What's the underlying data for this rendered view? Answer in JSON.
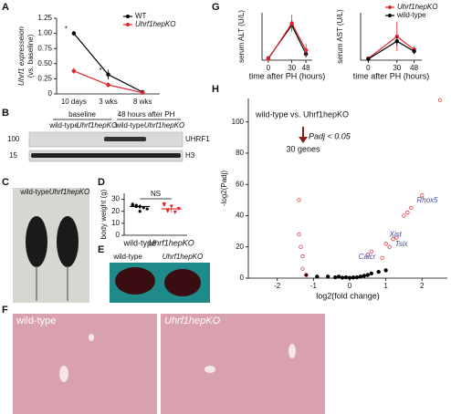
{
  "chart_data": [
    {
      "type": "line",
      "ylabel": [
        "Uhrf1 expresseion",
        "(vs. baseline)"
      ],
      "categories": [
        "10 days",
        "3 wks",
        "8 wks"
      ],
      "series": [
        {
          "name": "WT",
          "color": "#000000",
          "values": [
            1.0,
            0.32,
            0.03
          ],
          "errors": [
            0.04,
            0.08,
            0.02
          ]
        },
        {
          "name": "Uhrf1hepKO",
          "color": "#e0242b",
          "values": [
            0.38,
            0.15,
            0.02
          ],
          "errors": [
            0.05,
            0.04,
            0.01
          ]
        }
      ],
      "annotations": [
        "*",
        "*"
      ],
      "ylim": [
        0,
        1.25
      ],
      "yticks": [
        0,
        0.25,
        {
          "value": 0.5,
          "label": "0.50"
        },
        0.75,
        {
          "value": 1,
          "label": "1.00"
        },
        1.25
      ],
      "legend": "upper right"
    },
    {
      "type": "dotplot",
      "ylabel": "body weight (g)",
      "categories": [
        "wild-type",
        "Uhrf1hepKO"
      ],
      "values": [
        24,
        22
      ],
      "errors": [
        2,
        3
      ],
      "points": [
        [
          26,
          25,
          24,
          23,
          22,
          25,
          24,
          20
        ],
        [
          25,
          21,
          24,
          19,
          22,
          26,
          20
        ]
      ],
      "colors": [
        "#000000",
        "#e0242b"
      ],
      "annotation": "NS",
      "ylim": [
        0,
        35
      ],
      "yticks": [
        0,
        10,
        20,
        30
      ]
    },
    {
      "type": "line",
      "ylabel": "serum ALT (U/L)",
      "xlabel": "time after PH (hours)",
      "x": [
        0,
        30,
        48
      ],
      "xlim": [
        -8,
        56
      ],
      "xticks": [
        0,
        30,
        48
      ],
      "ylim": [
        0,
        3800
      ],
      "series": [
        {
          "color": "#000000",
          "values": [
            150,
            2800,
            500
          ],
          "errors": [
            50,
            400,
            300
          ]
        },
        {
          "color": "#e0242b",
          "values": [
            100,
            2950,
            800
          ],
          "errors": [
            50,
            700,
            500
          ]
        }
      ]
    },
    {
      "type": "line",
      "ylabel": "serum AST (U/L)",
      "xlabel": "time after PH (hours)",
      "x": [
        0,
        30,
        48
      ],
      "xlim": [
        -8,
        56
      ],
      "xticks": [
        0,
        30,
        48
      ],
      "ylim": [
        0,
        8000
      ],
      "series": [
        {
          "name": "Uhrf1hepKO",
          "color": "#e0242b",
          "values": [
            300,
            4000,
            1800
          ],
          "errors": [
            200,
            2500,
            600
          ]
        },
        {
          "name": "wild-type",
          "color": "#000000",
          "values": [
            200,
            3200,
            1500
          ],
          "errors": [
            100,
            800,
            500
          ]
        }
      ],
      "legend": "upper right"
    },
    {
      "type": "scatter",
      "title": "wild-type vs. Uhrf1hepKO",
      "annotations": [
        "Padj < 0.05",
        "30 genes"
      ],
      "xlabel": "log2(fold change)",
      "ylabel": "-log2(Padj)",
      "xlim": [
        -2.8,
        2.7
      ],
      "ylim": [
        0,
        115
      ],
      "xticks": [
        -2,
        -1,
        0,
        1,
        2
      ],
      "yticks": [
        0,
        20,
        40,
        60,
        80,
        100
      ],
      "series": [
        {
          "color": "#000000",
          "x": [
            -1.2,
            -0.9,
            -0.6,
            -0.4,
            -0.3,
            -0.2,
            -0.1,
            0,
            0.1,
            0.2,
            0.3,
            0.4,
            0.5,
            0.6,
            0.8,
            1.0
          ],
          "y": [
            2,
            1,
            1,
            0.5,
            1,
            0.3,
            0.5,
            0.2,
            0.4,
            0.5,
            1,
            1.5,
            2,
            3,
            4,
            5
          ]
        },
        {
          "color": "#e0242b",
          "x": [
            -1.4,
            -1.4,
            -1.35,
            -1.3,
            -1.3,
            -1.2,
            0.5,
            0.6,
            0.9,
            1.0,
            1.1,
            1.2,
            1.3,
            1.5,
            1.6,
            1.7,
            2.0,
            2.5
          ],
          "y": [
            50,
            28,
            20,
            14,
            6,
            2,
            15,
            17,
            13,
            22,
            20,
            25,
            26,
            40,
            42,
            45,
            53,
            114
          ]
        }
      ],
      "gene_labels": [
        {
          "text": "Rhox5",
          "x": 1.7,
          "y": 45
        },
        {
          "text": "Xist",
          "x": 1.0,
          "y": 22
        },
        {
          "text": "Tsix",
          "x": 1.1,
          "y": 20
        },
        {
          "text": "Calcr",
          "x": 0.6,
          "y": 17
        }
      ]
    }
  ],
  "figure": {
    "letters": [
      "A",
      "B",
      "C",
      "D",
      "E",
      "F",
      "G",
      "H"
    ],
    "blot": {
      "groups": [
        "baseline",
        "48 hours after PH"
      ],
      "lanes": [
        "wild-type",
        "Uhrf1hepKO",
        "wild-type",
        "Uhrf1hepKO"
      ],
      "markers": [
        "100",
        "15"
      ],
      "proteins": [
        "UHRF1",
        "H3"
      ]
    },
    "photo_c": [
      "wild-type",
      "Uhrf1hepKO"
    ],
    "photo_e": [
      "wild-type",
      "Uhrf1hepKO"
    ],
    "histology": [
      "wild-type",
      "Uhrf1hepKO"
    ]
  }
}
